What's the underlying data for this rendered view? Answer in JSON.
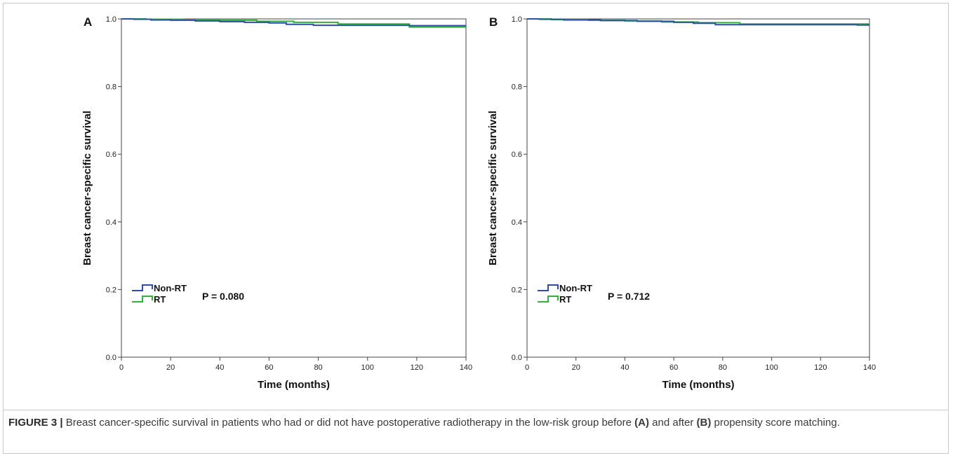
{
  "figure": {
    "caption_label": "FIGURE 3 |",
    "caption_parts": [
      " Breast cancer-specific survival in patients who had or did not have postoperative radiotherapy in the low-risk group before ",
      "(A)",
      " and after ",
      "(B)",
      " propensity score matching."
    ]
  },
  "chart_data": [
    {
      "type": "line",
      "subtype": "kaplan-meier-step",
      "panel_label": "A",
      "xlabel": "Time (months)",
      "ylabel": "Breast cancer-specific survival",
      "xlim": [
        0,
        140
      ],
      "ylim": [
        0.0,
        1.0
      ],
      "xticks": [
        "0",
        "20",
        "40",
        "60",
        "80",
        "100",
        "120",
        "140"
      ],
      "yticks": [
        "0.0",
        "0.2",
        "0.4",
        "0.6",
        "0.8",
        "1.0"
      ],
      "grid": false,
      "legend_position": "bottom-left",
      "annotation": "P = 0.080",
      "series": [
        {
          "name": "Non-RT",
          "color": "#2a4fa3",
          "x": [
            0,
            5,
            12,
            20,
            30,
            40,
            50,
            60,
            67,
            78,
            90,
            117,
            140
          ],
          "y": [
            1.0,
            0.999,
            0.997,
            0.996,
            0.994,
            0.992,
            0.99,
            0.988,
            0.984,
            0.981,
            0.981,
            0.98,
            0.98
          ]
        },
        {
          "name": "RT",
          "color": "#33b03a",
          "x": [
            0,
            10,
            25,
            40,
            55,
            70,
            88,
            117,
            140
          ],
          "y": [
            1.0,
            0.999,
            0.998,
            0.996,
            0.993,
            0.99,
            0.985,
            0.976,
            0.976
          ]
        }
      ]
    },
    {
      "type": "line",
      "subtype": "kaplan-meier-step",
      "panel_label": "B",
      "xlabel": "Time (months)",
      "ylabel": "Breast cancer-specific survival",
      "xlim": [
        0,
        140
      ],
      "ylim": [
        0.0,
        1.0
      ],
      "xticks": [
        "0",
        "20",
        "40",
        "60",
        "80",
        "100",
        "120",
        "140"
      ],
      "yticks": [
        "0.0",
        "0.2",
        "0.4",
        "0.6",
        "0.8",
        "1.0"
      ],
      "grid": false,
      "legend_position": "bottom-left",
      "annotation": "P = 0.712",
      "series": [
        {
          "name": "Non-RT",
          "color": "#2a4fa3",
          "x": [
            0,
            5,
            15,
            30,
            45,
            60,
            68,
            77,
            90,
            110,
            135,
            140
          ],
          "y": [
            1.0,
            0.999,
            0.997,
            0.995,
            0.993,
            0.99,
            0.987,
            0.983,
            0.983,
            0.983,
            0.982,
            0.982
          ]
        },
        {
          "name": "RT",
          "color": "#33b03a",
          "x": [
            0,
            10,
            25,
            40,
            55,
            70,
            87,
            140
          ],
          "y": [
            1.0,
            0.998,
            0.996,
            0.994,
            0.991,
            0.989,
            0.985,
            0.985
          ]
        }
      ]
    }
  ]
}
